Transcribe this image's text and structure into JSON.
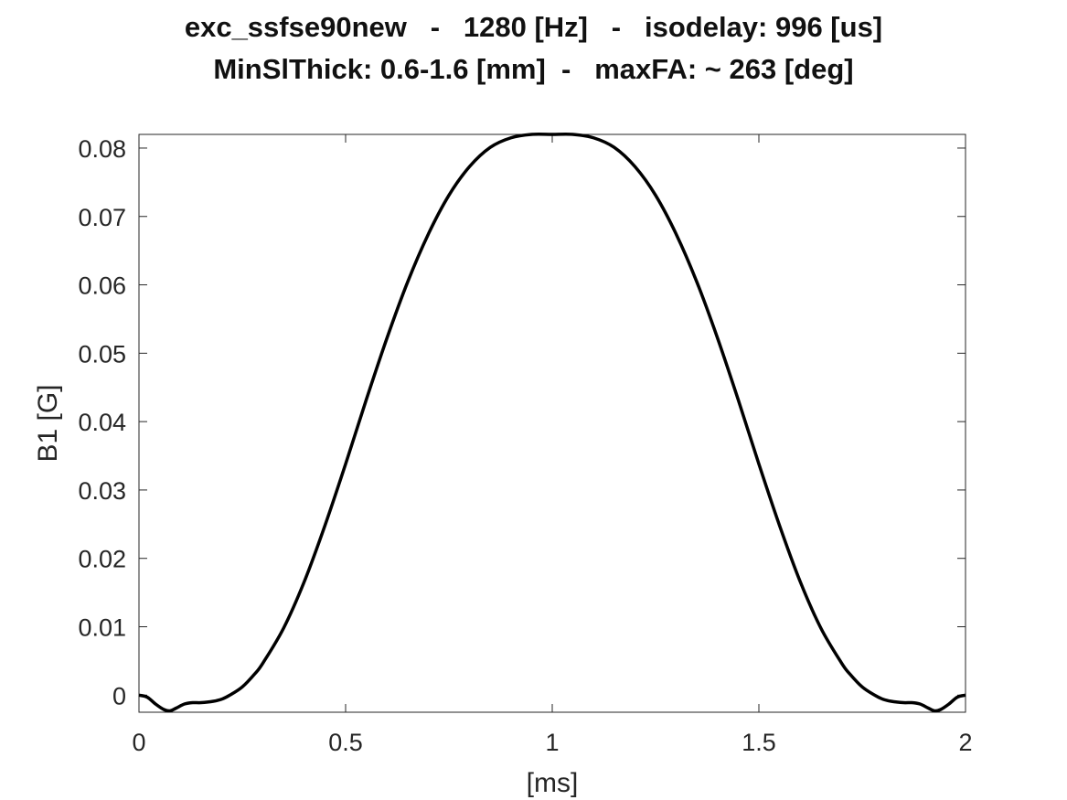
{
  "chart_data": {
    "type": "line",
    "title_lines": [
      "exc_ssfse90new   -   1280 [Hz]   -   isodelay: 996 [us]",
      "MinSlThick: 0.6-1.6 [mm]  -   maxFA: ~ 263 [deg]"
    ],
    "xlabel": "[ms]",
    "ylabel": "B1 [G]",
    "xlim": [
      0,
      2
    ],
    "ylim": [
      -0.0025,
      0.082
    ],
    "xticks": [
      0,
      0.5,
      1,
      1.5,
      2
    ],
    "xtick_labels": [
      "0",
      "0.5",
      "1",
      "1.5",
      "2"
    ],
    "yticks": [
      0,
      0.01,
      0.02,
      0.03,
      0.04,
      0.05,
      0.06,
      0.07,
      0.08
    ],
    "ytick_labels": [
      "0",
      "0.01",
      "0.02",
      "0.03",
      "0.04",
      "0.05",
      "0.06",
      "0.07",
      "0.08"
    ],
    "grid": false,
    "line_color": "#000000",
    "series": [
      {
        "x": [
          0,
          0.02,
          0.04,
          0.06,
          0.075,
          0.09,
          0.11,
          0.13,
          0.15,
          0.18,
          0.2,
          0.22,
          0.25,
          0.28,
          0.3,
          0.35,
          0.4,
          0.45,
          0.5,
          0.55,
          0.6,
          0.65,
          0.7,
          0.75,
          0.8,
          0.85,
          0.9,
          0.95,
          1.0,
          1.05,
          1.1,
          1.15,
          1.2,
          1.25,
          1.3,
          1.35,
          1.4,
          1.45,
          1.5,
          1.55,
          1.6,
          1.65,
          1.7,
          1.72,
          1.75,
          1.78,
          1.8,
          1.82,
          1.85,
          1.87,
          1.89,
          1.91,
          1.925,
          1.94,
          1.96,
          1.98,
          2.0
        ],
        "y": [
          0,
          -0.0003,
          -0.0013,
          -0.0021,
          -0.0023,
          -0.0019,
          -0.0013,
          -0.0011,
          -0.0011,
          -0.0009,
          -0.0006,
          0.0,
          0.0012,
          0.0031,
          0.0047,
          0.0098,
          0.0166,
          0.0248,
          0.0338,
          0.0432,
          0.0522,
          0.0604,
          0.0674,
          0.0731,
          0.0773,
          0.0801,
          0.0815,
          0.082,
          0.082,
          0.082,
          0.0815,
          0.0801,
          0.0773,
          0.0731,
          0.0674,
          0.0604,
          0.0522,
          0.0432,
          0.0338,
          0.0248,
          0.0166,
          0.0098,
          0.0047,
          0.0031,
          0.0012,
          0.0,
          -0.0006,
          -0.0009,
          -0.0011,
          -0.0011,
          -0.0013,
          -0.0019,
          -0.0023,
          -0.0021,
          -0.0013,
          -0.0003,
          0
        ]
      }
    ]
  }
}
